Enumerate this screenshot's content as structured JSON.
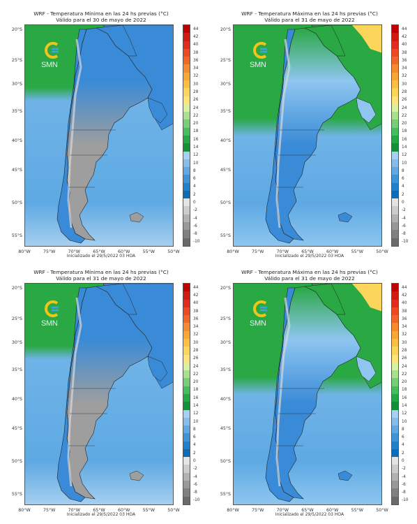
{
  "panels": [
    {
      "title": "WRF - Temperatura Mínima en las 24 hs previas (°C)",
      "valid": "Válido para el 30 de mayo de 2022",
      "kind": "min"
    },
    {
      "title": "WRF - Temperatura Máxima en las 24 hs previas (°C)",
      "valid": "Válido para el 31 de mayo de 2022",
      "kind": "max"
    },
    {
      "title": "WRF - Temperatura Mínima en las 24 hs previas (°C)",
      "valid": "Válido para el 31 de mayo de 2022",
      "kind": "min"
    },
    {
      "title": "WRF - Temperatura Máxima en las 24 hs previas (°C)",
      "valid": "Válido para el 31 de mayo de 2022",
      "kind": "max"
    }
  ],
  "initialized": "Inicializado el 29/5/2022 03 HOA",
  "logo_text": "SMN",
  "lat_labels": [
    "20°S",
    "25°S",
    "30°S",
    "35°S",
    "40°S",
    "45°S",
    "50°S",
    "55°S"
  ],
  "lon_labels": [
    "80°W",
    "75°W",
    "70°W",
    "65°W",
    "60°W",
    "55°W",
    "50°W"
  ],
  "colorbar_labels": [
    "44",
    "42",
    "40",
    "38",
    "36",
    "34",
    "32",
    "30",
    "28",
    "26",
    "24",
    "22",
    "20",
    "18",
    "16",
    "14",
    "12",
    "10",
    "8",
    "6",
    "4",
    "2",
    "0",
    "-2",
    "-4",
    "-6",
    "-8",
    "-10"
  ],
  "colorbar_colors": [
    "#c00000",
    "#d21a10",
    "#e42c1e",
    "#ee4a22",
    "#f3662a",
    "#f58a2e",
    "#f8a736",
    "#fbc042",
    "#fcd65a",
    "#fde47a",
    "#d9f0a0",
    "#a8e08e",
    "#76cf78",
    "#46bd5e",
    "#22a845",
    "#129238",
    "#a8d0f0",
    "#86bdea",
    "#62a8e2",
    "#3f94d8",
    "#1f80cc",
    "#0c6cb8",
    "#e4e4e4",
    "#cccccc",
    "#b2b2b2",
    "#999999",
    "#808080",
    "#6a6a6a"
  ],
  "colors": {
    "sea_min": "#6fb3e7",
    "sea_max_north": "#2aa843",
    "land_cold": "#9e9e9e",
    "land_cool": "#3a8bd7",
    "land_mild": "#8ec6f0",
    "land_warm": "#2aa843",
    "land_hot": "#fcd65a"
  }
}
